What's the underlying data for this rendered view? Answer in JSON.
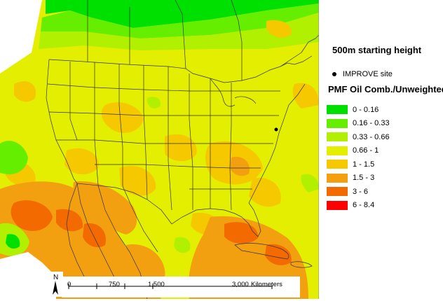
{
  "legend": {
    "title": "500m starting height",
    "site_label": "IMPROVE site",
    "layer_title": "PMF Oil Comb./Unweighted",
    "classes": [
      {
        "label": "0 - 0.16",
        "color": "#00e000"
      },
      {
        "label": "0.16 - 0.33",
        "color": "#66ee00"
      },
      {
        "label": "0.33 - 0.66",
        "color": "#b0f000"
      },
      {
        "label": "0.66 - 1",
        "color": "#e4ee00"
      },
      {
        "label": "1 - 1.5",
        "color": "#f5c800"
      },
      {
        "label": "1.5 - 3",
        "color": "#f3a010"
      },
      {
        "label": "3 - 6",
        "color": "#f26a00"
      },
      {
        "label": "6 - 8.4",
        "color": "#ff0000"
      }
    ]
  },
  "scale": {
    "labels": [
      "0",
      "750",
      "1,500",
      "3,000"
    ],
    "unit": "Kilometers"
  },
  "north_label": "N",
  "colors": {
    "ocean": "#ffffff",
    "boundary": "#333333",
    "site": "#000000"
  },
  "site": {
    "name": "IMPROVE site"
  }
}
